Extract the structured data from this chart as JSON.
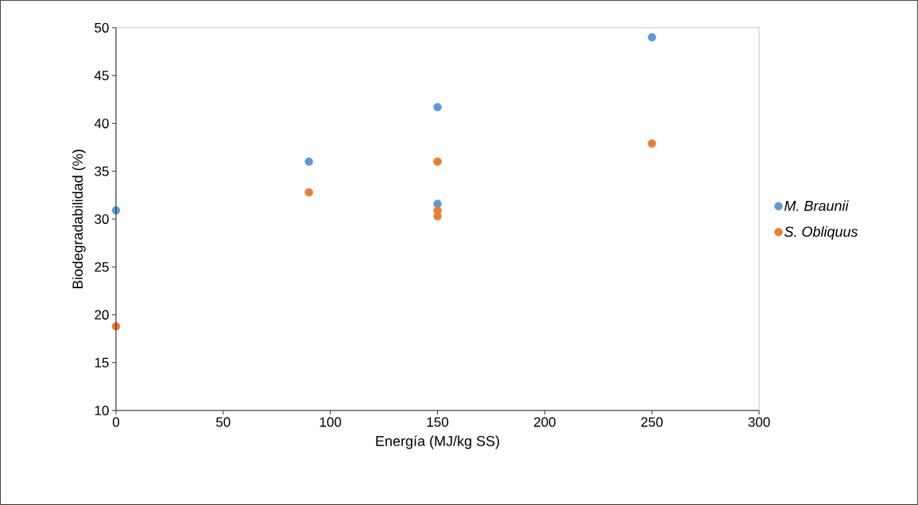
{
  "chart_data": {
    "type": "scatter",
    "xlabel": "Energía (MJ/kg SS)",
    "ylabel": "Biodegradabilidad (%)",
    "xlim": [
      0,
      300
    ],
    "xticks": [
      0,
      50,
      100,
      150,
      200,
      250,
      300
    ],
    "ylim": [
      10,
      50
    ],
    "yticks": [
      10,
      15,
      20,
      25,
      30,
      35,
      40,
      45,
      50
    ],
    "marker": "circle",
    "legend": "right",
    "grid": false,
    "series": [
      {
        "name": "M. Braunii",
        "color": "#5b9bd5",
        "x": [
          0,
          90,
          150,
          150,
          250
        ],
        "values": [
          30.9,
          36.0,
          41.7,
          31.6,
          49.0
        ]
      },
      {
        "name": "S. Obliquus",
        "color": "#ed7d31",
        "x": [
          0,
          90,
          150,
          150,
          150,
          250
        ],
        "values": [
          18.8,
          32.8,
          36.0,
          30.9,
          30.3,
          37.9
        ]
      }
    ]
  }
}
